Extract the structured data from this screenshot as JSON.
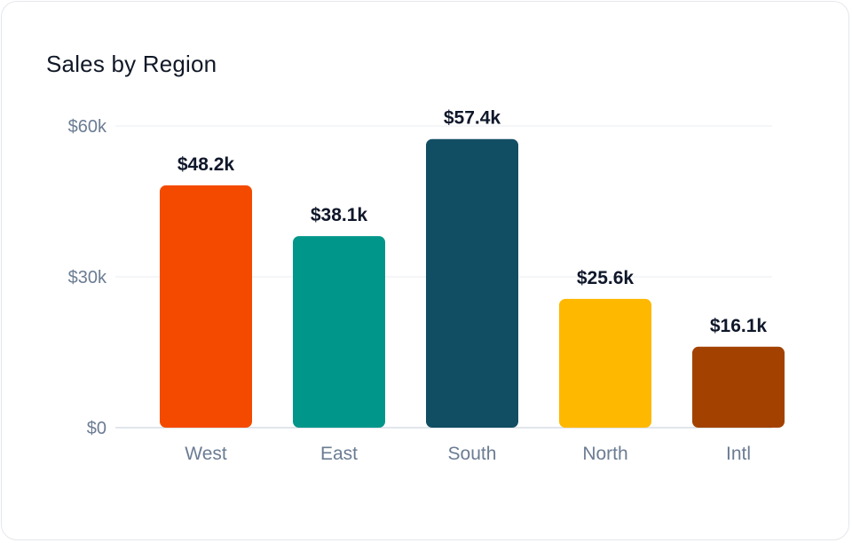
{
  "chart_data": {
    "type": "bar",
    "title": "Sales by Region",
    "categories": [
      "West",
      "East",
      "South",
      "North",
      "Intl"
    ],
    "values": [
      48.2,
      38.1,
      57.4,
      25.6,
      16.1
    ],
    "data_labels": [
      "$48.2k",
      "$38.1k",
      "$57.4k",
      "$25.6k",
      "$16.1k"
    ],
    "colors": [
      "#f44a00",
      "#00968a",
      "#114e63",
      "#ffb800",
      "#a34200"
    ],
    "yticks": [
      0,
      30,
      60
    ],
    "ytick_labels": [
      "$0",
      "$30k",
      "$60k"
    ],
    "ylim": [
      0,
      60
    ],
    "xlabel": "",
    "ylabel": "",
    "grid": true,
    "legend": "none"
  }
}
